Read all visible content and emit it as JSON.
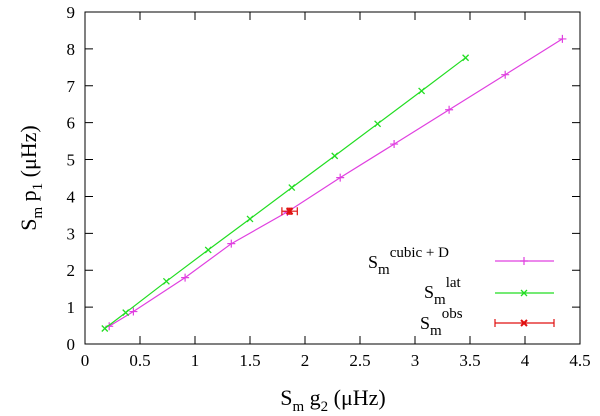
{
  "chart_data": {
    "type": "line",
    "xlabel": {
      "main": "S",
      "sub1": "m",
      "mid": " g",
      "sub2": "2",
      "unit": " (μHz)"
    },
    "ylabel": {
      "main": "S",
      "sub1": "m",
      "mid": " p",
      "sub2": "1",
      "unit": " (μHz)"
    },
    "xlim": [
      0,
      4.5
    ],
    "ylim": [
      0,
      9
    ],
    "xticks": [
      "0",
      "0.5",
      "1",
      "1.5",
      "2",
      "2.5",
      "3",
      "3.5",
      "4",
      "4.5"
    ],
    "yticks": [
      "0",
      "1",
      "2",
      "3",
      "4",
      "5",
      "6",
      "7",
      "8",
      "9"
    ],
    "grid": false,
    "legend_position": "bottom-right",
    "series": [
      {
        "name": {
          "base": "S",
          "sub": "m",
          "sup": "cubic + D"
        },
        "color": "#e040e0",
        "marker": "plus",
        "x": [
          0.22,
          0.44,
          0.91,
          1.33,
          1.84,
          2.32,
          2.81,
          3.31,
          3.82,
          4.34
        ],
        "y": [
          0.48,
          0.88,
          1.8,
          2.72,
          3.58,
          4.51,
          5.42,
          6.35,
          7.3,
          8.27
        ]
      },
      {
        "name": {
          "base": "S",
          "sub": "m",
          "sup": "lat"
        },
        "color": "#22dd22",
        "marker": "cross",
        "x": [
          0.18,
          0.37,
          0.74,
          1.12,
          1.5,
          1.88,
          2.27,
          2.66,
          3.06,
          3.46
        ],
        "y": [
          0.42,
          0.85,
          1.7,
          2.55,
          3.39,
          4.24,
          5.1,
          5.97,
          6.86,
          7.76
        ]
      },
      {
        "name": {
          "base": "S",
          "sub": "m",
          "sup": "obs"
        },
        "color": "#e01010",
        "marker": "errorbar",
        "x": [
          1.86
        ],
        "y": [
          3.6
        ],
        "xerr": [
          0.07
        ],
        "yerr": [
          0.08
        ]
      }
    ]
  }
}
